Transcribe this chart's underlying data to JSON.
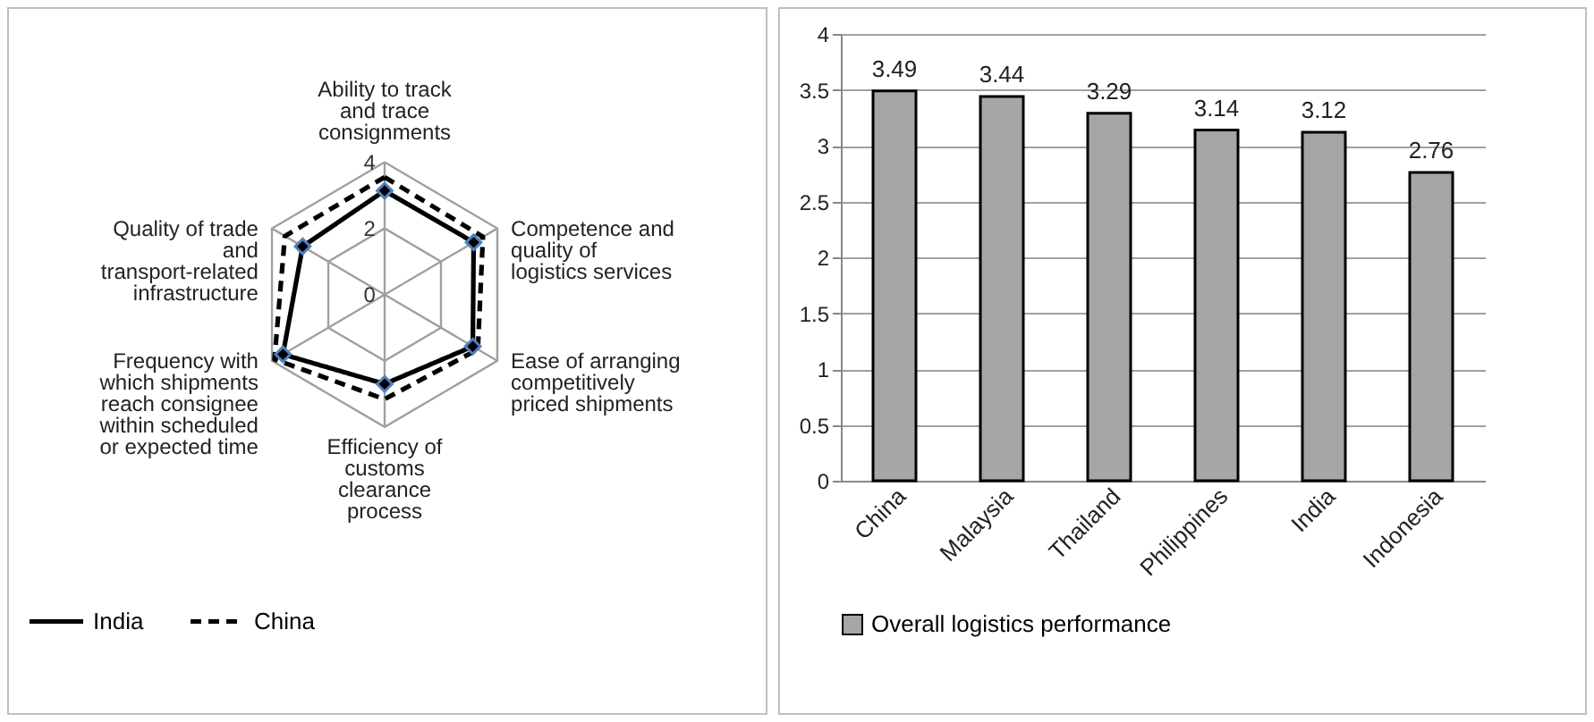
{
  "chart_data": [
    {
      "type": "radar",
      "categories": [
        "Ability to track and trace consignments",
        "Competence and quality of logistics services",
        "Ease of arranging competitively priced shipments",
        "Efficiency of customs clearance process",
        "Frequency with which shipments reach consignee within scheduled or expected time",
        "Quality of trade and transport-related infrastructure"
      ],
      "series": [
        {
          "name": "India",
          "color": "#000000",
          "values": [
            3.14,
            3.16,
            3.13,
            2.7,
            3.61,
            2.91
          ],
          "marker": "diamond",
          "line_style": "solid"
        },
        {
          "name": "China",
          "color": "#000000",
          "values": [
            3.55,
            3.49,
            3.31,
            3.16,
            3.91,
            3.54
          ],
          "marker": "none",
          "line_style": "dashed"
        }
      ],
      "ylim": [
        0,
        4
      ],
      "yticks": [
        0,
        2,
        4
      ],
      "grid": true,
      "legend": "bottom"
    },
    {
      "type": "bar",
      "categories": [
        "China",
        "Malaysia",
        "Thailand",
        "Philippines",
        "India",
        "Indonesia"
      ],
      "series": [
        {
          "name": "Overall logistics performance",
          "color": "#a6a6a6",
          "values": [
            3.49,
            3.44,
            3.29,
            3.14,
            3.12,
            2.76
          ]
        }
      ],
      "ylim": [
        0,
        4
      ],
      "yticks": [
        0,
        0.5,
        1,
        1.5,
        2,
        2.5,
        3,
        3.5,
        4
      ],
      "grid": "y",
      "data_labels": true,
      "legend": "bottom"
    }
  ]
}
